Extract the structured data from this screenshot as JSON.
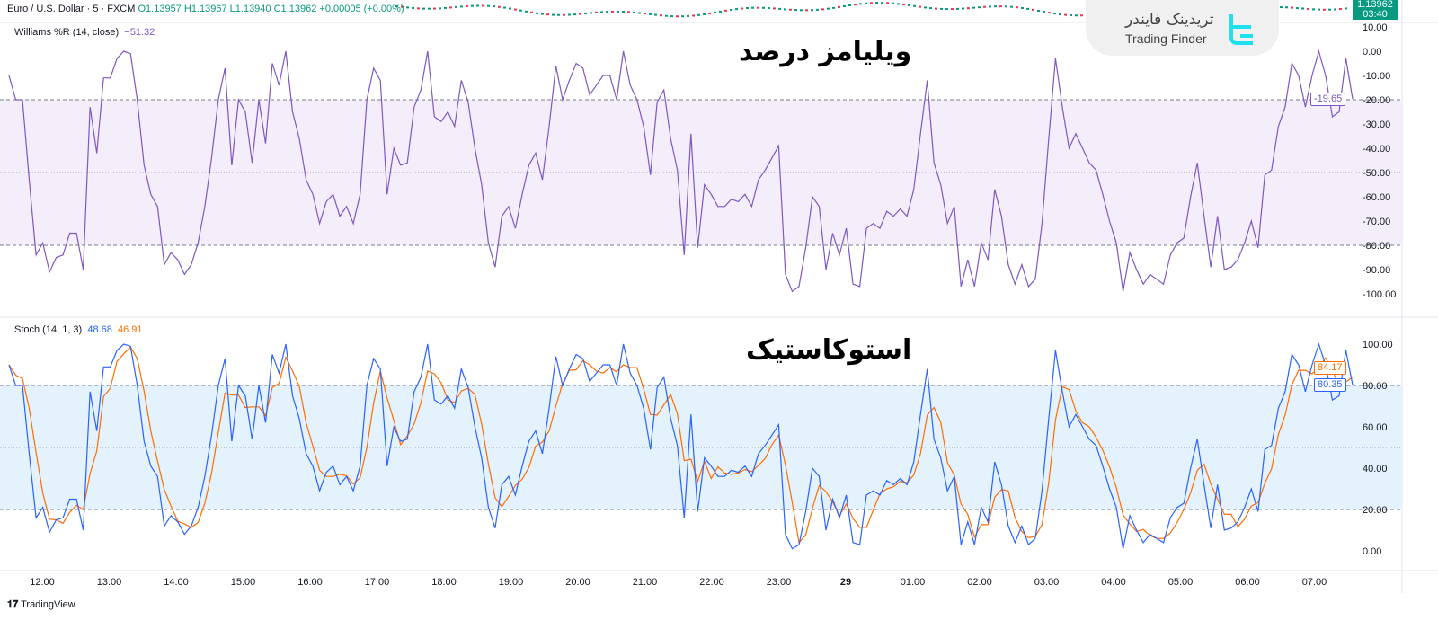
{
  "symbol_header": {
    "name": "Euro / U.S. Dollar · 5 · FXCM",
    "o": "O1.13957",
    "h": "H1.13967",
    "l": "L1.13940",
    "c": "C1.13962",
    "chg": "+0.00005 (+0.00%)"
  },
  "price_tag": {
    "price": "1.13962",
    "countdown": "03:40",
    "color": "#089981"
  },
  "logo": {
    "fa": "تریدینک فایندر",
    "en": "Trading Finder"
  },
  "watermarks": {
    "williams": "ویلیامز درصد",
    "stoch": "استوکاستیک"
  },
  "branding": "TradingView",
  "chart_data": [
    {
      "type": "line",
      "title": "Williams %R (14, close)",
      "header_value": "−51.32",
      "last_value": "-19.65",
      "color": "#7e57c2",
      "ylim": [
        -105,
        12
      ],
      "yticks": [
        "10.00",
        "0.00",
        "-10.00",
        "-20.00",
        "-30.00",
        "-40.00",
        "-50.00",
        "-60.00",
        "-70.00",
        "-80.00",
        "-90.00",
        "-100.00"
      ],
      "bands": {
        "upper": -20,
        "middle": -50,
        "lower": -80,
        "fill": "#f3eefa"
      },
      "values": [
        -10,
        -20,
        -20,
        -53,
        -84,
        -79,
        -91,
        -85,
        -84,
        -75,
        -75,
        -90,
        -23,
        -42,
        -11,
        -11,
        -3,
        0,
        -1,
        -20,
        -47,
        -59,
        -64,
        -88,
        -83,
        -86,
        -92,
        -88,
        -79,
        -64,
        -44,
        -20,
        -7,
        -47,
        -20,
        -25,
        -46,
        -20,
        -38,
        -5,
        -14,
        0,
        -25,
        -36,
        -53,
        -59,
        -71,
        -62,
        -59,
        -68,
        -64,
        -71,
        -59,
        -20,
        -7,
        -12,
        -59,
        -40,
        -47,
        -46,
        -23,
        -16,
        0,
        -27,
        -29,
        -25,
        -31,
        -12,
        -21,
        -40,
        -55,
        -79,
        -89,
        -68,
        -64,
        -73,
        -59,
        -47,
        -42,
        -53,
        -31,
        -6,
        -20,
        -12,
        -5,
        -7,
        -18,
        -14,
        -10,
        -10,
        -20,
        0,
        -14,
        -20,
        -31,
        -51,
        -21,
        -16,
        -36,
        -49,
        -84,
        -34,
        -81,
        -55,
        -59,
        -64,
        -64,
        -61,
        -62,
        -59,
        -64,
        -53,
        -49,
        -44,
        -39,
        -92,
        -99,
        -97,
        -81,
        -60,
        -64,
        -90,
        -75,
        -84,
        -73,
        -96,
        -97,
        -73,
        -71,
        -73,
        -66,
        -68,
        -65,
        -68,
        -57,
        -34,
        -12,
        -46,
        -55,
        -71,
        -64,
        -97,
        -86,
        -97,
        -79,
        -86,
        -57,
        -68,
        -88,
        -96,
        -88,
        -97,
        -94,
        -71,
        -36,
        -3,
        -23,
        -40,
        -34,
        -40,
        -46,
        -49,
        -59,
        -70,
        -79,
        -99,
        -83,
        -90,
        -96,
        -92,
        -94,
        -96,
        -84,
        -79,
        -77,
        -60,
        -46,
        -68,
        -89,
        -68,
        -90,
        -89,
        -86,
        -79,
        -70,
        -81,
        -51,
        -49,
        -31,
        -23,
        -5,
        -10,
        -23,
        -10,
        0,
        -10,
        -27,
        -25,
        -3,
        -19.65
      ]
    },
    {
      "type": "line",
      "title": "Stoch (14, 1, 3)",
      "header_k": "48.68",
      "header_d": "46.91",
      "last_k": "80.35",
      "last_d": "84.17",
      "series": [
        {
          "key": "k",
          "color": "#2962ff"
        },
        {
          "key": "d",
          "color": "#ff6d00"
        }
      ],
      "ylim": [
        -5,
        105
      ],
      "yticks": [
        "100.00",
        "80.00",
        "60.00",
        "40.00",
        "20.00",
        "0.00"
      ],
      "bands": {
        "upper": 80,
        "middle": 50,
        "lower": 20,
        "fill": "#e3f2fd"
      }
    },
    {
      "type": "axis",
      "xticks": [
        "12:00",
        "13:00",
        "14:00",
        "15:00",
        "16:00",
        "17:00",
        "18:00",
        "19:00",
        "20:00",
        "21:00",
        "22:00",
        "23:00",
        "29",
        "01:00",
        "02:00",
        "03:00",
        "04:00",
        "05:00",
        "06:00",
        "07:00"
      ]
    }
  ]
}
